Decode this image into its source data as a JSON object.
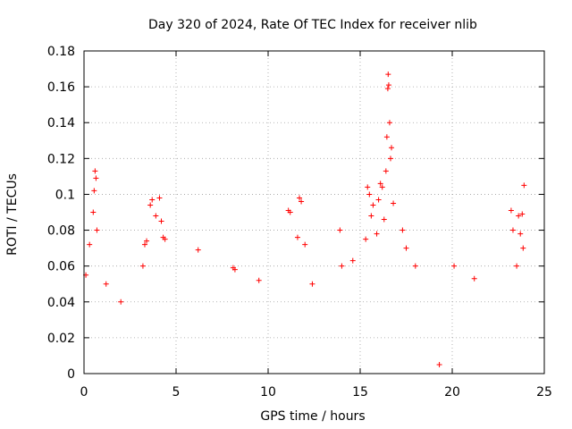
{
  "chart_data": {
    "type": "scatter",
    "title": "Day 320 of 2024, Rate Of TEC Index for receiver nlib",
    "xlabel": "GPS time / hours",
    "ylabel": "ROTI / TECUs",
    "xlim": [
      0,
      25
    ],
    "ylim": [
      0,
      0.18
    ],
    "x_ticks": [
      "0",
      "5",
      "10",
      "15",
      "20",
      "25"
    ],
    "y_ticks": [
      "0",
      "0.02",
      "0.04",
      "0.06",
      "0.08",
      "0.1",
      "0.12",
      "0.14",
      "0.16",
      "0.18"
    ],
    "grid": true,
    "marker": "+",
    "series_color": "#ff0000",
    "series": [
      {
        "x": [
          0.1,
          0.3,
          0.5,
          0.55,
          0.6,
          0.65,
          0.7,
          1.2,
          2.0,
          3.2,
          3.3,
          3.4,
          3.6,
          3.7,
          3.9,
          4.1,
          4.2,
          4.3,
          4.4,
          6.2,
          8.1,
          8.2,
          9.5,
          11.1,
          11.2,
          11.6,
          11.7,
          11.8,
          12.0,
          12.4,
          13.9,
          14.0,
          14.6,
          15.3,
          15.4,
          15.5,
          15.6,
          15.7,
          15.9,
          16.0,
          16.1,
          16.2,
          16.3,
          16.4,
          16.45,
          16.5,
          16.52,
          16.55,
          16.6,
          16.65,
          16.7,
          16.8,
          17.3,
          17.5,
          18.0,
          19.3,
          20.1,
          21.2,
          23.2,
          23.3,
          23.5,
          23.6,
          23.7,
          23.8,
          23.85,
          23.9
        ],
        "y": [
          0.055,
          0.072,
          0.09,
          0.102,
          0.113,
          0.109,
          0.08,
          0.05,
          0.04,
          0.06,
          0.072,
          0.074,
          0.094,
          0.097,
          0.088,
          0.098,
          0.085,
          0.076,
          0.075,
          0.069,
          0.059,
          0.058,
          0.052,
          0.091,
          0.09,
          0.076,
          0.098,
          0.096,
          0.072,
          0.05,
          0.08,
          0.06,
          0.063,
          0.075,
          0.104,
          0.1,
          0.088,
          0.094,
          0.078,
          0.097,
          0.106,
          0.104,
          0.086,
          0.113,
          0.132,
          0.159,
          0.167,
          0.161,
          0.14,
          0.12,
          0.126,
          0.095,
          0.08,
          0.07,
          0.06,
          0.005,
          0.06,
          0.053,
          0.091,
          0.08,
          0.06,
          0.088,
          0.078,
          0.089,
          0.07,
          0.105
        ]
      }
    ]
  }
}
